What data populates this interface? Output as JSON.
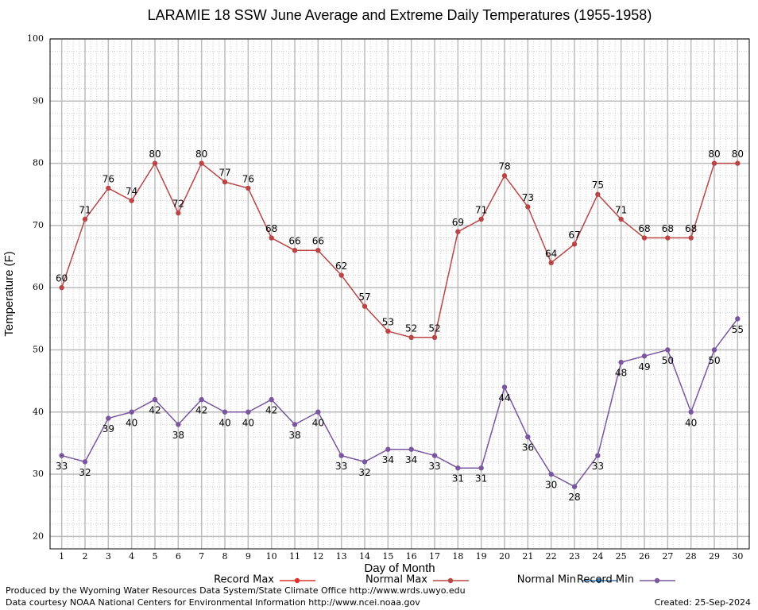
{
  "chart_data": {
    "type": "line",
    "title": "LARAMIE 18 SSW June Average and Extreme Daily Temperatures (1955-1958)",
    "y_label": "Temperature (F)",
    "x_label": "Day of Month",
    "x": [
      1,
      2,
      3,
      4,
      5,
      6,
      7,
      8,
      9,
      10,
      11,
      12,
      13,
      14,
      15,
      16,
      17,
      18,
      19,
      20,
      21,
      22,
      23,
      24,
      25,
      26,
      27,
      28,
      29,
      30
    ],
    "series": [
      {
        "name": "Record Max",
        "color": "#e0302c",
        "values": [
          null,
          null,
          null,
          null,
          null,
          null,
          null,
          null,
          null,
          null,
          null,
          null,
          null,
          null,
          null,
          null,
          null,
          null,
          null,
          null,
          null,
          null,
          null,
          null,
          null,
          null,
          null,
          null,
          null,
          null
        ]
      },
      {
        "name": "Normal Max",
        "color": "#bb4444",
        "values": [
          60,
          71,
          76,
          74,
          80,
          72,
          80,
          77,
          76,
          68,
          66,
          66,
          62,
          57,
          53,
          52,
          52,
          69,
          71,
          78,
          73,
          64,
          67,
          75,
          71,
          68,
          68,
          68,
          80,
          80
        ]
      },
      {
        "name": "Normal Min",
        "color": "#3b7fbf",
        "values": [
          null,
          null,
          null,
          null,
          null,
          null,
          null,
          null,
          null,
          null,
          null,
          null,
          null,
          null,
          null,
          null,
          null,
          null,
          null,
          null,
          null,
          null,
          null,
          null,
          null,
          null,
          null,
          null,
          null,
          null
        ]
      },
      {
        "name": "Record Min",
        "color": "#7a55a0",
        "values": [
          33,
          32,
          39,
          40,
          42,
          38,
          42,
          40,
          40,
          42,
          38,
          40,
          33,
          32,
          34,
          34,
          33,
          31,
          31,
          44,
          36,
          30,
          28,
          33,
          48,
          49,
          50,
          40,
          50,
          55
        ]
      }
    ],
    "xlim": [
      0.5,
      30.5
    ],
    "xticks": [
      1,
      2,
      3,
      4,
      5,
      6,
      7,
      8,
      9,
      10,
      11,
      12,
      13,
      14,
      15,
      16,
      17,
      18,
      19,
      20,
      21,
      22,
      23,
      24,
      25,
      26,
      27,
      28,
      29,
      30
    ],
    "ylim": [
      18,
      100
    ],
    "yticks": [
      20,
      30,
      40,
      50,
      60,
      70,
      80,
      90,
      100
    ],
    "grid": true,
    "footer": [
      "Produced by the Wyoming Water Resources Data System/State Climate Office http://www.wrds.uwyo.edu",
      "Data courtesy NOAA National Centers for Environmental Information http://www.ncei.noaa.gov"
    ],
    "created": "Created:  25-Sep-2024"
  }
}
